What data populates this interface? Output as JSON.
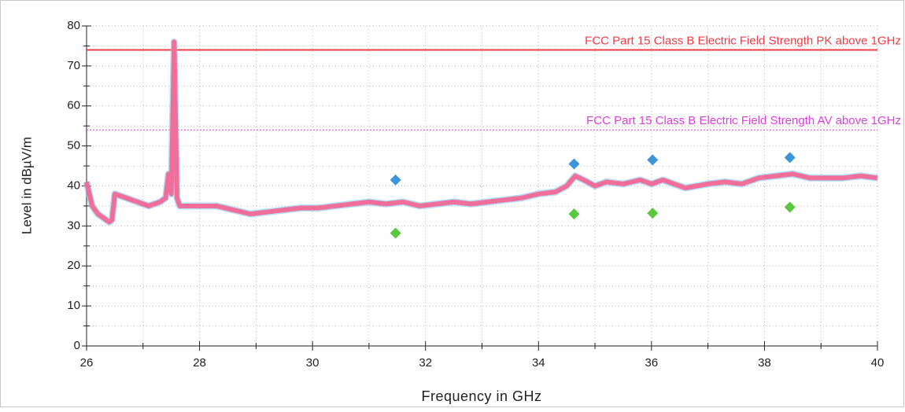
{
  "chart_data": {
    "type": "line",
    "xlabel": "Frequency in GHz",
    "ylabel": "Level in dBµV/m",
    "xlim": [
      26,
      40
    ],
    "ylim": [
      0,
      80
    ],
    "xticks": [
      26,
      28,
      30,
      32,
      34,
      36,
      38,
      40
    ],
    "xticks_minor": [
      27,
      29,
      31,
      33,
      35,
      37,
      39
    ],
    "yticks": [
      0,
      10,
      20,
      30,
      40,
      50,
      60,
      70,
      80
    ],
    "yticks_minor": [
      5,
      15,
      25,
      35,
      45,
      55,
      65,
      75
    ],
    "grid": true,
    "limits": [
      {
        "label": "FCC Part 15 Class B Electric Field Strength PK above 1GHz",
        "value": 74,
        "color": "#f03c46",
        "style": "solid"
      },
      {
        "label": "FCC Part 15 Class B Electric Field Strength AV above 1GHz",
        "value": 54,
        "color": "#e040e0",
        "style": "dotted"
      }
    ],
    "series": [
      {
        "color": "#f06e9a",
        "x": [
          26.0,
          26.05,
          26.1,
          26.2,
          26.3,
          26.4,
          26.45,
          26.5,
          26.7,
          26.9,
          27.1,
          27.3,
          27.4,
          27.45,
          27.5,
          27.55,
          27.6,
          27.65,
          27.8,
          28.0,
          28.3,
          28.6,
          28.9,
          29.2,
          29.5,
          29.8,
          30.1,
          30.4,
          30.7,
          31.0,
          31.3,
          31.6,
          31.9,
          32.2,
          32.5,
          32.8,
          33.1,
          33.4,
          33.7,
          34.0,
          34.3,
          34.5,
          34.65,
          34.8,
          35.0,
          35.2,
          35.5,
          35.8,
          36.0,
          36.2,
          36.4,
          36.6,
          36.8,
          37.0,
          37.3,
          37.6,
          37.9,
          38.2,
          38.5,
          38.8,
          39.1,
          39.4,
          39.7,
          40.0
        ],
        "values": [
          41,
          38,
          35,
          33,
          32,
          31,
          31.5,
          38,
          37,
          36,
          35,
          36,
          37,
          43,
          38,
          76,
          37,
          35,
          35,
          35,
          35,
          34,
          33,
          33.5,
          34,
          34.5,
          34.5,
          35,
          35.5,
          36,
          35.5,
          36,
          35,
          35.5,
          36,
          35.5,
          36,
          36.5,
          37,
          38,
          38.5,
          40,
          42.5,
          41.5,
          40,
          41,
          40.5,
          41.5,
          40.5,
          41.5,
          40.5,
          39.5,
          40,
          40.5,
          41,
          40.5,
          42,
          42.5,
          43,
          42,
          42,
          42,
          42.5,
          42
        ]
      }
    ],
    "markers": [
      {
        "color": "#3c96dc",
        "x": [
          31.47,
          34.63,
          36.02,
          38.45
        ],
        "values": [
          41.5,
          45.5,
          46.5,
          47.1
        ]
      },
      {
        "color": "#5ac83c",
        "x": [
          31.47,
          34.63,
          36.02,
          38.45
        ],
        "values": [
          28.2,
          33,
          33.2,
          34.7
        ]
      }
    ]
  }
}
